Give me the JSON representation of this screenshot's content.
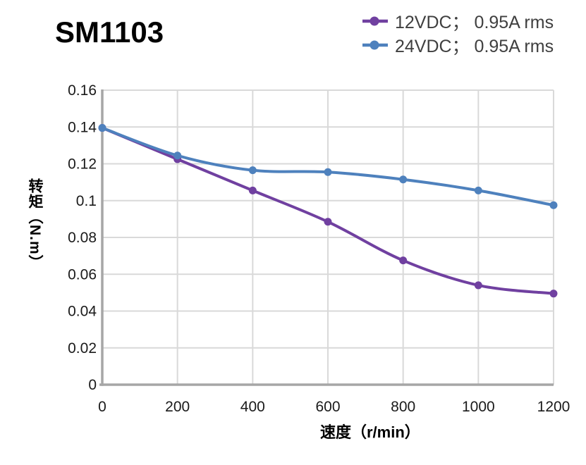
{
  "title": "SM1103",
  "chart_data": {
    "type": "line",
    "title": "SM1103",
    "xlabel": "速度（r/min）",
    "ylabel": "转矩（N.m）",
    "xlim": [
      0,
      1200
    ],
    "ylim": [
      0,
      0.16
    ],
    "x_ticks": [
      0,
      200,
      400,
      600,
      800,
      1000,
      1200
    ],
    "x_tick_labels": [
      "0",
      "200",
      "400",
      "600",
      "800",
      "1000",
      "1200"
    ],
    "y_ticks": [
      0,
      0.02,
      0.04,
      0.06,
      0.08,
      0.1,
      0.12,
      0.14,
      0.16
    ],
    "y_tick_labels": [
      "0",
      "0.02",
      "0.04",
      "0.06",
      "0.08",
      "0.1",
      "0.12",
      "0.14",
      "0.16"
    ],
    "grid": true,
    "legend_position": "top-right",
    "x": [
      0,
      200,
      400,
      600,
      800,
      1000,
      1200
    ],
    "series": [
      {
        "id": "12vdc",
        "name": "12VDC； 0.95A rms",
        "color": "#7040A0",
        "marker": "circle",
        "values": [
          0.1395,
          0.1225,
          0.1055,
          0.0885,
          0.0675,
          0.054,
          0.0495
        ]
      },
      {
        "id": "24vdc",
        "name": "24VDC； 0.95A rms",
        "color": "#4E81BD",
        "marker": "circle",
        "values": [
          0.1395,
          0.1245,
          0.1165,
          0.1155,
          0.1115,
          0.1055,
          0.0975
        ]
      }
    ],
    "colors": {
      "grid": "#D9D9D9",
      "axis": "#A6A6A6",
      "tick_text": "#1A1A1A",
      "legend_text": "#3F3F3F",
      "title_text": "#000000"
    }
  }
}
